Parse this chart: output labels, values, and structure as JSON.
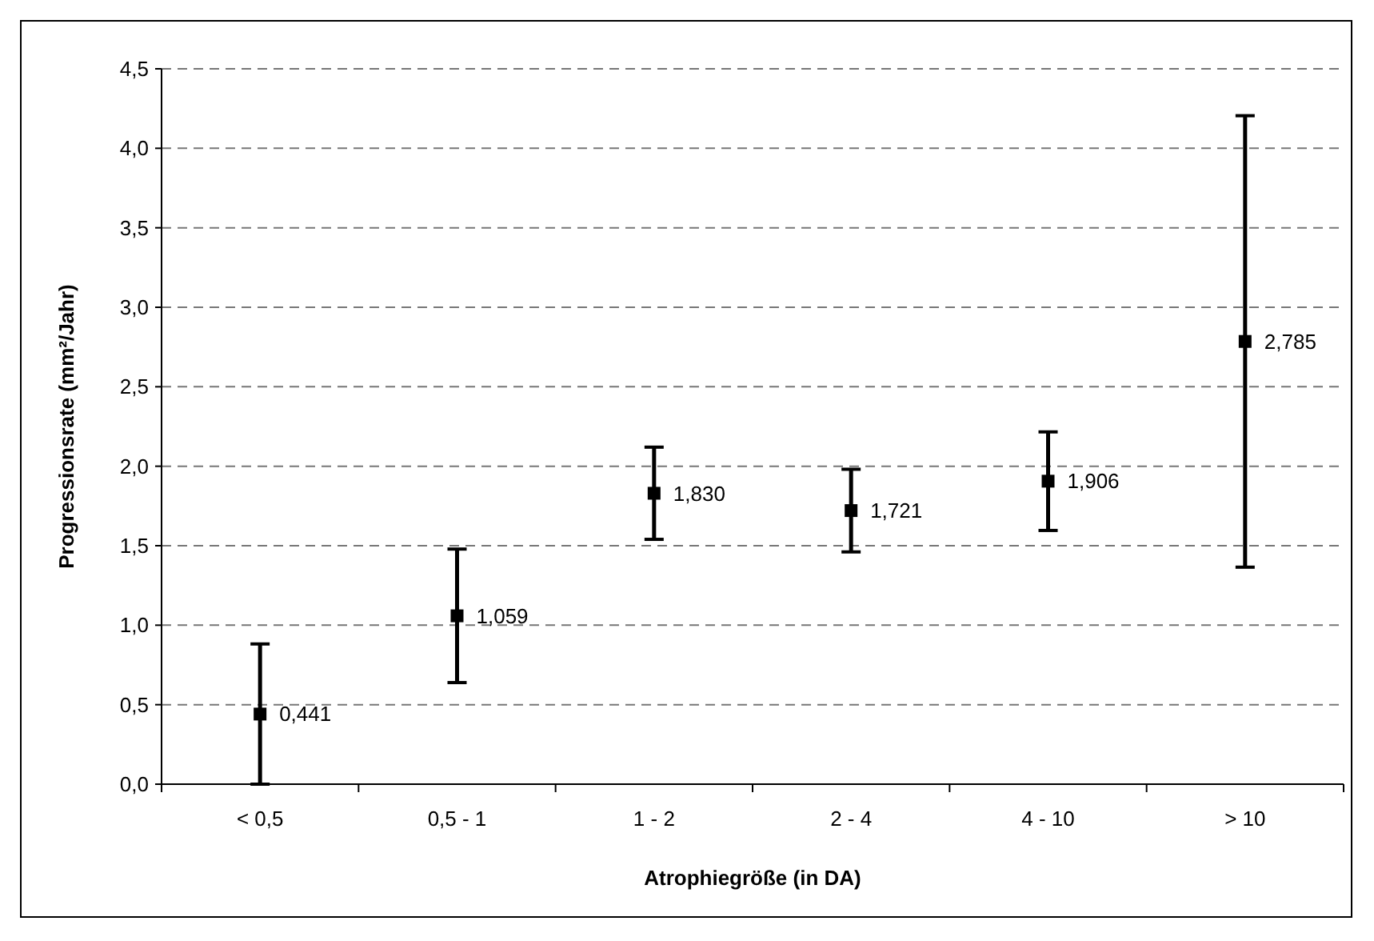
{
  "chart_data": {
    "type": "scatter",
    "xlabel": "Atrophiegröße (in DA)",
    "ylabel": "Progressionsrate (mm²/Jahr)",
    "categories": [
      "< 0,5",
      "0,5 - 1",
      "1 - 2",
      "2 - 4",
      "4 - 10",
      "> 10"
    ],
    "values": [
      0.441,
      1.059,
      1.83,
      1.721,
      1.906,
      2.785
    ],
    "errors": [
      0.441,
      0.42,
      0.29,
      0.26,
      0.31,
      1.42
    ],
    "value_labels": [
      "0,441",
      "1,059",
      "1,830",
      "1,721",
      "1,906",
      "2,785"
    ],
    "color": "#000000",
    "marker": "square",
    "ylim": [
      0,
      4.5
    ],
    "yticks": [
      {
        "value": 0,
        "label": "0,0"
      },
      {
        "value": 0.5,
        "label": "0,5"
      },
      {
        "value": 1,
        "label": "1,0"
      },
      {
        "value": 1.5,
        "label": "1,5"
      },
      {
        "value": 2,
        "label": "2,0"
      },
      {
        "value": 2.5,
        "label": "2,5"
      },
      {
        "value": 3,
        "label": "3,0"
      },
      {
        "value": 3.5,
        "label": "3,5"
      },
      {
        "value": 4,
        "label": "4,0"
      },
      {
        "value": 4.5,
        "label": "4,5"
      }
    ],
    "grid": "y",
    "line_style": "dashed"
  }
}
